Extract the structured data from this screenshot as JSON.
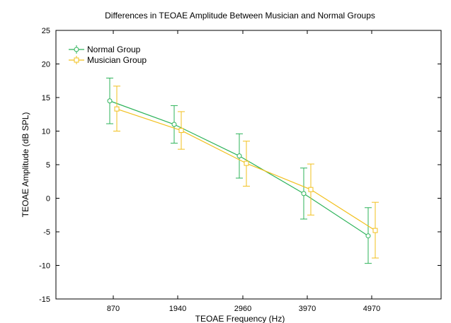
{
  "chart_data": {
    "type": "line",
    "title": "Differences in TEOAE Amplitude Between Musician and Normal Groups",
    "xlabel": "TEOAE Frequency (Hz)",
    "ylabel": "TEOAE Amplitude (dB SPL)",
    "categories": [
      "870",
      "1940",
      "2960",
      "3970",
      "4970"
    ],
    "ylim": [
      -15,
      25
    ],
    "yticks": [
      -15,
      -10,
      -5,
      0,
      5,
      10,
      15,
      20,
      25
    ],
    "grid": false,
    "legend": "top-left",
    "error_bars": true,
    "series": [
      {
        "name": "Normal Group",
        "color": "#2db35a",
        "marker": "circle",
        "values": [
          14.5,
          11.0,
          6.3,
          0.7,
          -5.6
        ],
        "lower": [
          11.1,
          8.2,
          3.0,
          -3.1,
          -9.7
        ],
        "upper": [
          17.9,
          13.8,
          9.6,
          4.5,
          -1.4
        ]
      },
      {
        "name": "Musician Group",
        "color": "#f2c01e",
        "marker": "square",
        "values": [
          13.3,
          10.1,
          5.2,
          1.3,
          -4.8
        ],
        "lower": [
          10.0,
          7.3,
          1.8,
          -2.5,
          -8.9
        ],
        "upper": [
          16.7,
          12.9,
          8.5,
          5.1,
          -0.6
        ]
      }
    ]
  }
}
